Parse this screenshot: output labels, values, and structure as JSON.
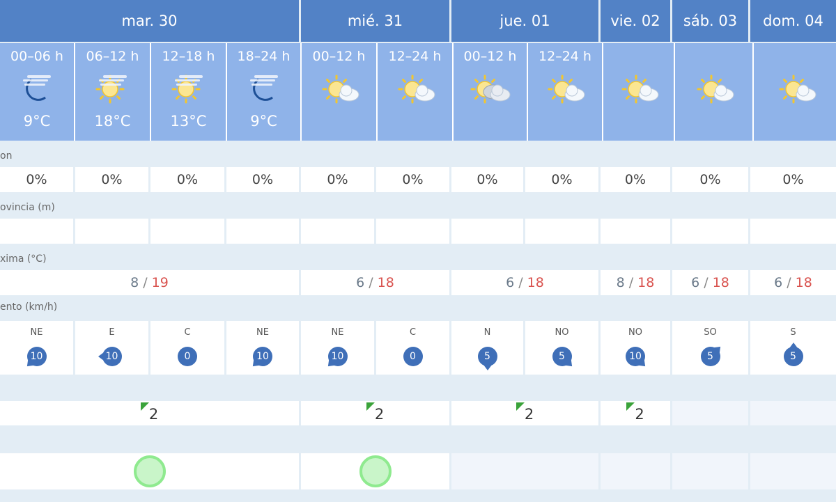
{
  "days": [
    {
      "label": "mar. 30",
      "span": 4
    },
    {
      "label": "mié. 31",
      "span": 2
    },
    {
      "label": "jue. 01",
      "span": 2
    },
    {
      "label": "vie. 02",
      "span": 1
    },
    {
      "label": "sáb. 03",
      "span": 1
    },
    {
      "label": "dom. 04",
      "span": 1
    }
  ],
  "periods": [
    {
      "label": "00–06 h",
      "icon": "moon-haze",
      "temp": "9°C"
    },
    {
      "label": "06–12 h",
      "icon": "sun-haze",
      "temp": "18°C"
    },
    {
      "label": "12–18 h",
      "icon": "sun-haze",
      "temp": "13°C"
    },
    {
      "label": "18–24 h",
      "icon": "moon-haze",
      "temp": "9°C"
    },
    {
      "label": "00–12 h",
      "icon": "sun-cloud",
      "temp": ""
    },
    {
      "label": "12–24 h",
      "icon": "sun-cloud",
      "temp": ""
    },
    {
      "label": "00–12 h",
      "icon": "cloudy-sun",
      "temp": ""
    },
    {
      "label": "12–24 h",
      "icon": "sun-cloud",
      "temp": ""
    },
    {
      "label": "",
      "icon": "sun-cloud",
      "temp": ""
    },
    {
      "label": "",
      "icon": "sun-cloud",
      "temp": ""
    },
    {
      "label": "",
      "icon": "sun-cloud",
      "temp": ""
    }
  ],
  "labels": {
    "precip": "on",
    "snow": "ovincia (m)",
    "temp": "xima (°C)",
    "wind": "ento (km/h)"
  },
  "precip": [
    "0%",
    "0%",
    "0%",
    "0%",
    "0%",
    "0%",
    "0%",
    "0%",
    "0%",
    "0%",
    "0%"
  ],
  "snow": [
    "",
    "",
    "",
    "",
    "",
    "",
    "",
    "",
    "",
    "",
    ""
  ],
  "temps": [
    {
      "min": "8",
      "max": "19",
      "span": 4
    },
    {
      "min": "6",
      "max": "18",
      "span": 2
    },
    {
      "min": "6",
      "max": "18",
      "span": 2
    },
    {
      "min": "8",
      "max": "18",
      "span": 1
    },
    {
      "min": "6",
      "max": "18",
      "span": 1
    },
    {
      "min": "6",
      "max": "18",
      "span": 1
    }
  ],
  "temp_sep": "/",
  "wind": [
    {
      "dir": "NE",
      "speed": "10"
    },
    {
      "dir": "E",
      "speed": "10"
    },
    {
      "dir": "C",
      "speed": "0"
    },
    {
      "dir": "NE",
      "speed": "10"
    },
    {
      "dir": "NE",
      "speed": "10"
    },
    {
      "dir": "C",
      "speed": "0"
    },
    {
      "dir": "N",
      "speed": "5"
    },
    {
      "dir": "NO",
      "speed": "5"
    },
    {
      "dir": "NO",
      "speed": "10"
    },
    {
      "dir": "SO",
      "speed": "5"
    },
    {
      "dir": "S",
      "speed": "5"
    }
  ],
  "uv": [
    {
      "value": "2",
      "span": 4
    },
    {
      "value": "2",
      "span": 2
    },
    {
      "value": "2",
      "span": 2
    },
    {
      "value": "2",
      "span": 1
    },
    {
      "value": "",
      "span": 1
    },
    {
      "value": "",
      "span": 1
    }
  ],
  "quality": [
    {
      "level": "good",
      "span": 4
    },
    {
      "level": "good",
      "span": 2
    },
    {
      "level": "",
      "span": 2
    },
    {
      "level": "",
      "span": 1
    },
    {
      "level": "",
      "span": 1
    },
    {
      "level": "",
      "span": 1
    }
  ],
  "colors": {
    "header": "#5282c6",
    "period": "#8fb3e9",
    "max_temp": "#d9534f",
    "wind_badge": "#3f6fb8",
    "uv_flag": "#3aa33a",
    "quality_good": "#8fea8f"
  }
}
